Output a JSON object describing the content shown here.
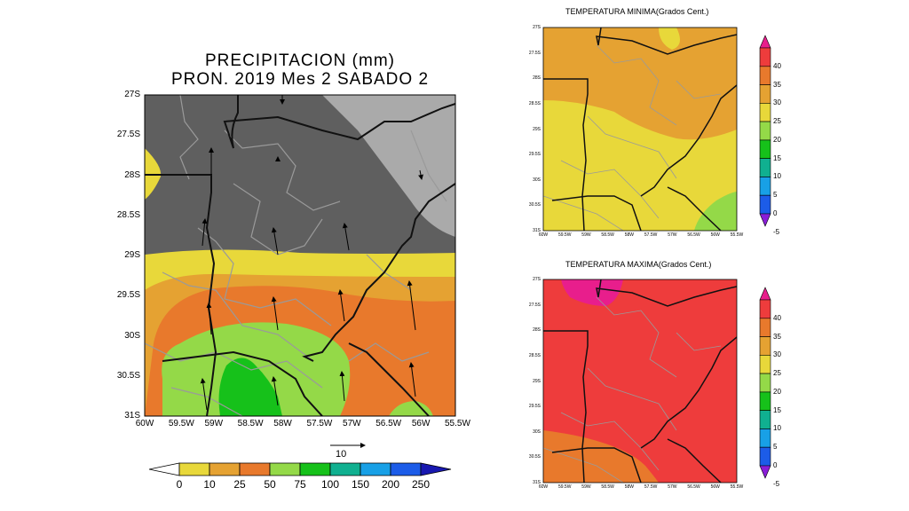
{
  "main_map": {
    "title_line1": "PRECIPITACION (mm)",
    "title_line2": "PRON. 2019 Mes 2 SABADO 2",
    "lat_ticks": [
      "27S",
      "27.5S",
      "28S",
      "28.5S",
      "29S",
      "29.5S",
      "30S",
      "30.5S",
      "31S"
    ],
    "lon_ticks": [
      "60W",
      "59.5W",
      "59W",
      "58.5W",
      "58W",
      "57.5W",
      "57W",
      "56.5W",
      "56W",
      "55.5W"
    ],
    "vector_reference": "10",
    "colorbar": {
      "labels": [
        "0",
        "10",
        "25",
        "50",
        "75",
        "100",
        "150",
        "200",
        "250"
      ],
      "colors": [
        "#ffffff",
        "#e8d83a",
        "#e5a232",
        "#e8792c",
        "#94d948",
        "#16c11a",
        "#10b090",
        "#18a0e6",
        "#1c5ce8",
        "#1818b0"
      ]
    },
    "colors": {
      "light_gray": "#aaaaaa",
      "dark_gray": "#5f5f5f",
      "yellow": "#e8d83a",
      "orange_light": "#e5a232",
      "orange": "#e8792c",
      "light_green": "#94d948",
      "green": "#16c11a"
    }
  },
  "min_temp_map": {
    "title": "TEMPERATURA MINIMA(Grados Cent.)",
    "lat_ticks": [
      "27S",
      "27.5S",
      "28S",
      "28.5S",
      "29S",
      "29.5S",
      "30S",
      "30.5S",
      "31S"
    ],
    "lon_ticks": [
      "60W",
      "59.5W",
      "59W",
      "58.5W",
      "58W",
      "57.5W",
      "57W",
      "56.5W",
      "56W",
      "55.5W"
    ]
  },
  "max_temp_map": {
    "title": "TEMPERATURA MAXIMA(Grados Cent.)",
    "lat_ticks": [
      "27S",
      "27.5S",
      "28S",
      "28.5S",
      "29S",
      "29.5S",
      "30S",
      "30.5S",
      "31S"
    ],
    "lon_ticks": [
      "60W",
      "59.5W",
      "59W",
      "58.5W",
      "58W",
      "57.5W",
      "57W",
      "56.5W",
      "56W",
      "55.5W"
    ]
  },
  "temp_colorbar": {
    "labels": [
      "40",
      "35",
      "30",
      "25",
      "20",
      "15",
      "10",
      "5",
      "0",
      "-5"
    ],
    "colors": [
      "#e81e8c",
      "#ee3c3c",
      "#e8792c",
      "#e5a232",
      "#e8d83a",
      "#94d948",
      "#16c11a",
      "#10b090",
      "#18a0e6",
      "#1c5ce8",
      "#8a1ed8"
    ]
  }
}
